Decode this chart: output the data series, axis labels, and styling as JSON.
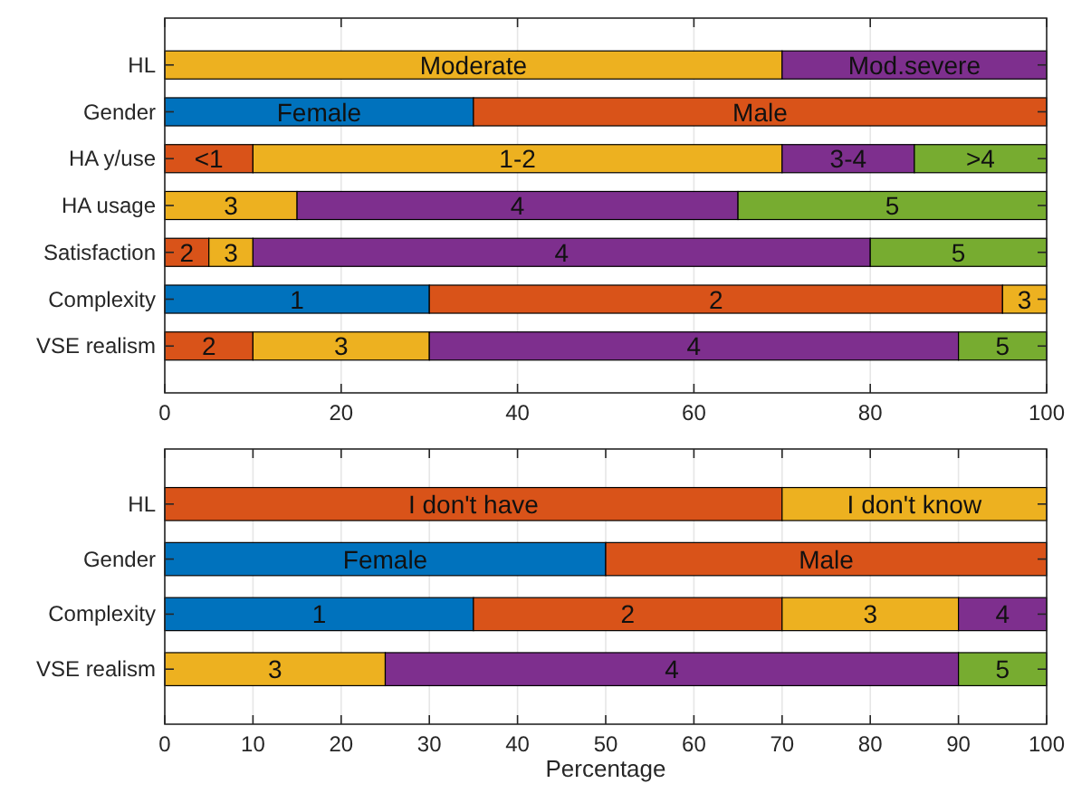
{
  "chart_data": [
    {
      "type": "bar",
      "orientation": "horizontal",
      "stacked": true,
      "categories": [
        "HL",
        "Gender",
        "HA y/use",
        "HA usage",
        "Satisfaction",
        "Complexity",
        "VSE realism"
      ],
      "xlim": [
        0,
        100
      ],
      "xticks": [
        0,
        20,
        40,
        60,
        80,
        100
      ],
      "grid": "x",
      "series": [
        {
          "color": "#0072bd",
          "values": [
            null,
            35,
            null,
            null,
            null,
            30,
            null
          ]
        },
        {
          "color": "#d95319",
          "values": [
            null,
            65,
            10,
            null,
            5,
            65,
            10
          ]
        },
        {
          "color": "#edb120",
          "values": [
            70,
            null,
            60,
            15,
            5,
            5,
            20
          ]
        },
        {
          "color": "#7e2f8e",
          "values": [
            30,
            null,
            15,
            50,
            70,
            null,
            60
          ]
        },
        {
          "color": "#77ac30",
          "values": [
            null,
            null,
            15,
            35,
            20,
            null,
            10
          ]
        }
      ],
      "annotations": [
        {
          "text": "Moderate",
          "x": 35,
          "y": "HL"
        },
        {
          "text": "Mod.severe",
          "x": 85,
          "y": "HL"
        },
        {
          "text": "Female",
          "x": 17.5,
          "y": "Gender"
        },
        {
          "text": "Male",
          "x": 67.5,
          "y": "Gender"
        },
        {
          "text": "<1",
          "x": 5,
          "y": "HA y/use"
        },
        {
          "text": "1-2",
          "x": 40,
          "y": "HA y/use"
        },
        {
          "text": "3-4",
          "x": 77.5,
          "y": "HA y/use"
        },
        {
          "text": ">4",
          "x": 92.5,
          "y": "HA y/use"
        },
        {
          "text": "3",
          "x": 7.5,
          "y": "HA usage"
        },
        {
          "text": "4",
          "x": 40,
          "y": "HA usage"
        },
        {
          "text": "5",
          "x": 82.5,
          "y": "HA usage"
        },
        {
          "text": "2",
          "x": 2.5,
          "y": "Satisfaction"
        },
        {
          "text": "3",
          "x": 7.5,
          "y": "Satisfaction"
        },
        {
          "text": "4",
          "x": 45,
          "y": "Satisfaction"
        },
        {
          "text": "5",
          "x": 90,
          "y": "Satisfaction"
        },
        {
          "text": "1",
          "x": 15,
          "y": "Complexity"
        },
        {
          "text": "2",
          "x": 62.5,
          "y": "Complexity"
        },
        {
          "text": "3",
          "x": 97.5,
          "y": "Complexity"
        },
        {
          "text": "2",
          "x": 5,
          "y": "VSE realism"
        },
        {
          "text": "3",
          "x": 20,
          "y": "VSE realism"
        },
        {
          "text": "4",
          "x": 60,
          "y": "VSE realism"
        },
        {
          "text": "5",
          "x": 95,
          "y": "VSE realism"
        }
      ]
    },
    {
      "type": "bar",
      "orientation": "horizontal",
      "stacked": true,
      "categories": [
        "HL",
        "Gender",
        "Complexity",
        "VSE realism"
      ],
      "xlim": [
        0,
        100
      ],
      "xticks": [
        0,
        10,
        20,
        30,
        40,
        50,
        60,
        70,
        80,
        90,
        100
      ],
      "grid": "x",
      "xlabel": "Percentage",
      "series": [
        {
          "color": "#0072bd",
          "values": [
            null,
            50,
            35,
            null
          ]
        },
        {
          "color": "#d95319",
          "values": [
            70,
            50,
            35,
            null
          ]
        },
        {
          "color": "#edb120",
          "values": [
            30,
            null,
            20,
            25
          ]
        },
        {
          "color": "#7e2f8e",
          "values": [
            null,
            null,
            10,
            65
          ]
        },
        {
          "color": "#77ac30",
          "values": [
            null,
            null,
            null,
            10
          ]
        }
      ],
      "annotations": [
        {
          "text": "I don't have",
          "x": 35,
          "y": "HL"
        },
        {
          "text": "I don't know",
          "x": 85,
          "y": "HL"
        },
        {
          "text": "Female",
          "x": 25,
          "y": "Gender"
        },
        {
          "text": "Male",
          "x": 75,
          "y": "Gender"
        },
        {
          "text": "1",
          "x": 17.5,
          "y": "Complexity"
        },
        {
          "text": "2",
          "x": 52.5,
          "y": "Complexity"
        },
        {
          "text": "3",
          "x": 80,
          "y": "Complexity"
        },
        {
          "text": "4",
          "x": 95,
          "y": "Complexity"
        },
        {
          "text": "3",
          "x": 12.5,
          "y": "VSE realism"
        },
        {
          "text": "4",
          "x": 57.5,
          "y": "VSE realism"
        },
        {
          "text": "5",
          "x": 95,
          "y": "VSE realism"
        }
      ]
    }
  ]
}
